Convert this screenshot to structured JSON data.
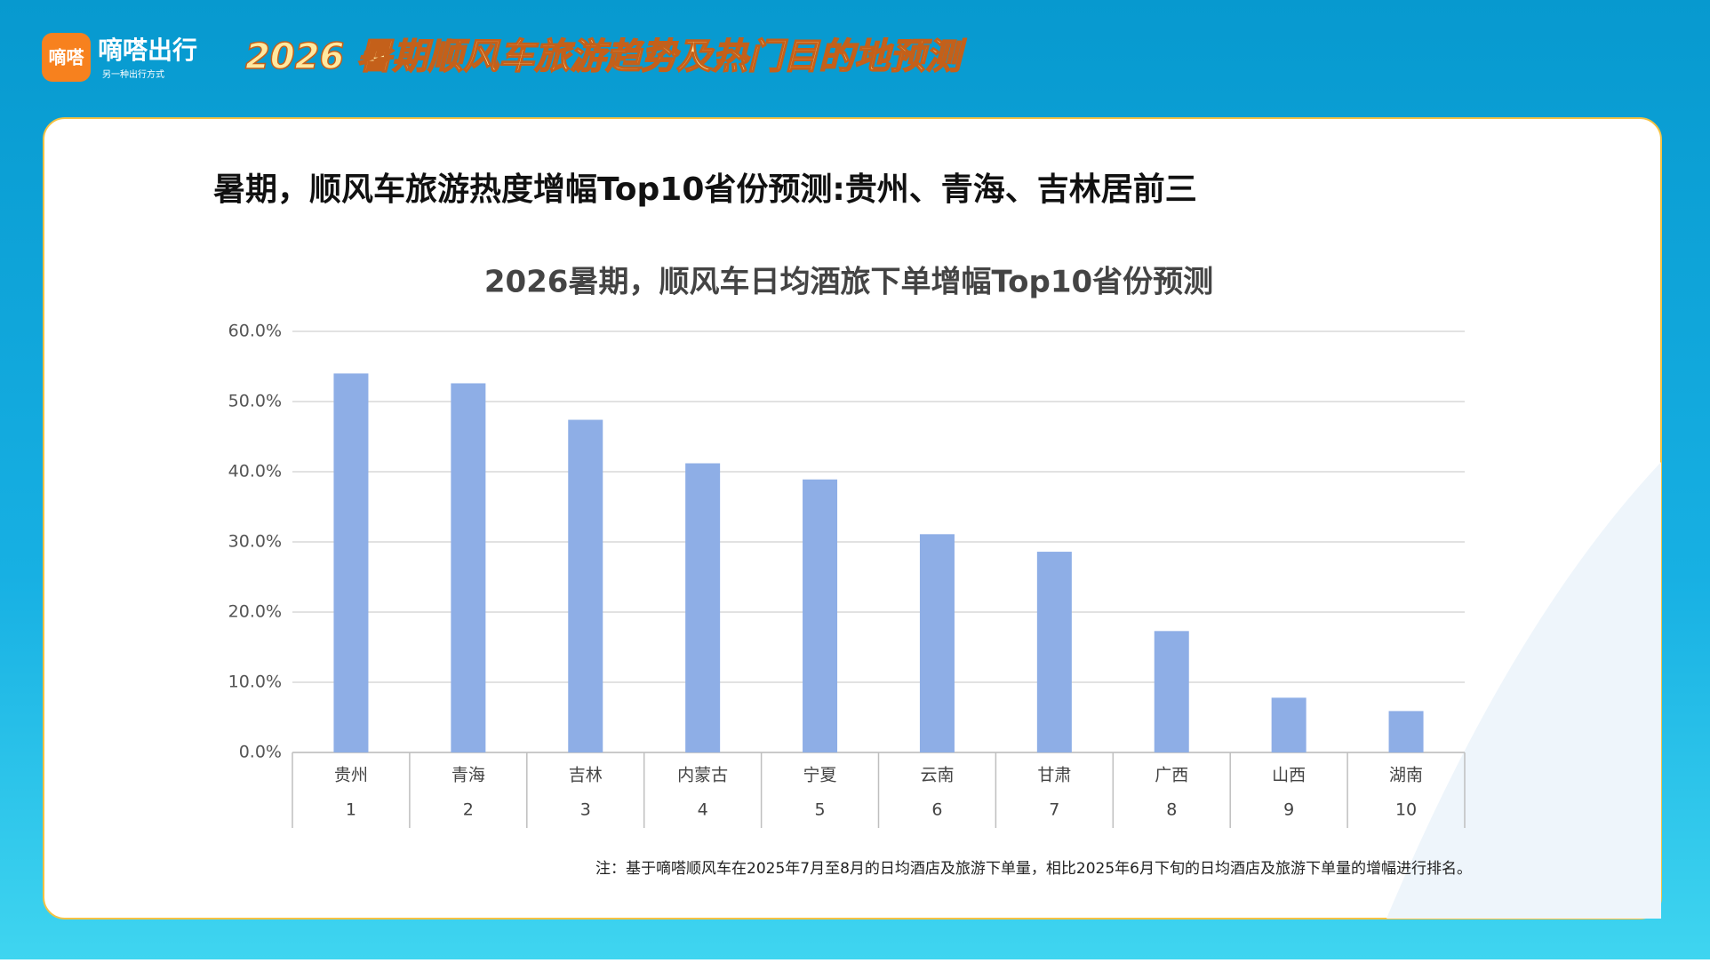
{
  "header": {
    "logo": "嘀嗒",
    "brand": "嘀嗒出行",
    "slogan": "另一种出行方式",
    "title": "2026 暑期顺风车旅游趋势及热门目的地预测"
  },
  "headline": "暑期，顺风车旅游热度增幅Top10省份预测:贵州、青海、吉林居前三",
  "chart_data": {
    "type": "bar",
    "title": "2026暑期，顺风车日均酒旅下单增幅Top10省份预测",
    "categories": [
      "贵州",
      "青海",
      "吉林",
      "内蒙古",
      "宁夏",
      "云南",
      "甘肃",
      "广西",
      "山西",
      "湖南"
    ],
    "ranks": [
      1,
      2,
      3,
      4,
      5,
      6,
      7,
      8,
      9,
      10
    ],
    "values": [
      54.0,
      52.6,
      47.4,
      41.2,
      38.9,
      31.1,
      28.6,
      17.3,
      7.8,
      5.9
    ],
    "color": "#8eaee6",
    "ylim": [
      0,
      60
    ],
    "yticks": [
      {
        "value": 0,
        "label": "0.0%"
      },
      {
        "value": 10,
        "label": "10.0%"
      },
      {
        "value": 20,
        "label": "20.0%"
      },
      {
        "value": 30,
        "label": "30.0%"
      },
      {
        "value": 40,
        "label": "40.0%"
      },
      {
        "value": 50,
        "label": "50.0%"
      },
      {
        "value": 60,
        "label": "60.0%"
      }
    ],
    "grid": true
  },
  "note": "注：基于嘀嗒顺风车在2025年7月至8月的日均酒店及旅游下单量，相比2025年6月下旬的日均酒店及旅游下单量的增幅进行排名。"
}
